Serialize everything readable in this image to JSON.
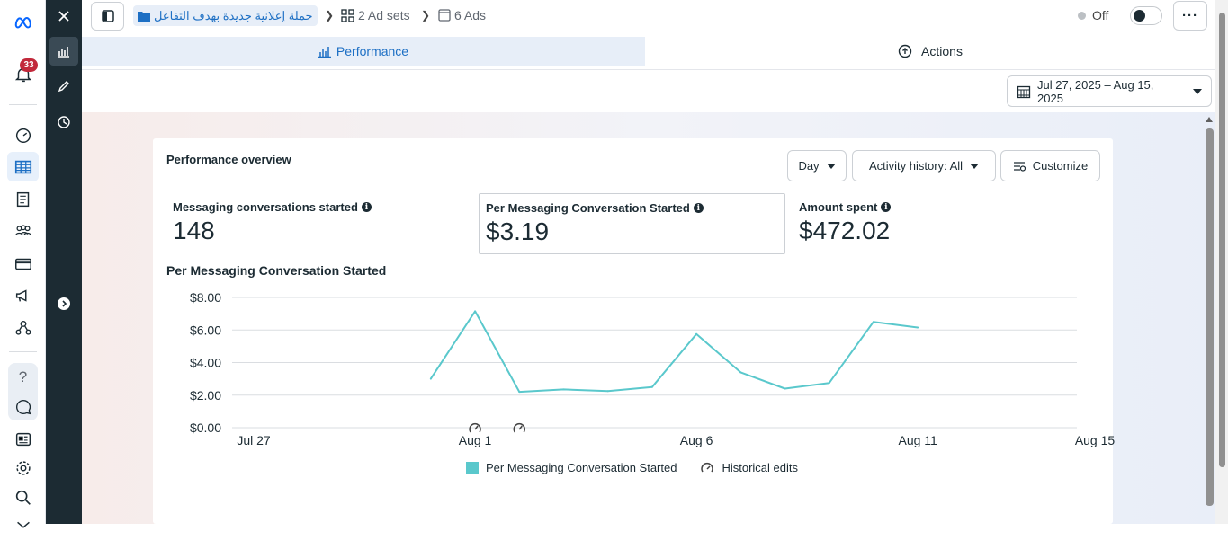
{
  "left_rail": {
    "logo": "meta-logo",
    "notification_count": "33",
    "items": [
      "notifications-icon",
      "dashboard-icon",
      "table-icon",
      "book-icon",
      "audience-icon",
      "billing-icon",
      "megaphone-icon",
      "network-icon",
      "help-icon",
      "chat-icon",
      "news-icon",
      "settings-icon",
      "search-icon",
      "tools-icon"
    ]
  },
  "dark_panel": {
    "items": [
      "close-icon",
      "performance-chart-icon",
      "edit-icon",
      "history-icon",
      "expand-icon"
    ]
  },
  "breadcrumb": {
    "campaign": "حملة إعلانية جديدة بهدف التفاعل",
    "ad_sets": "2 Ad sets",
    "ads": "6 Ads"
  },
  "status": {
    "label": "Off",
    "toggle_on": false
  },
  "tabs": {
    "performance": "Performance",
    "actions": "Actions"
  },
  "date_range": "Jul 27, 2025 – Aug 15, 2025",
  "card": {
    "title": "Performance overview",
    "controls": {
      "granularity": "Day",
      "activity": "Activity history: All",
      "customize": "Customize"
    },
    "metrics": [
      {
        "label": "Messaging conversations started",
        "value": "148"
      },
      {
        "label": "Per Messaging Conversation Started",
        "value": "$3.19"
      },
      {
        "label": "Amount spent",
        "value": "$472.02"
      }
    ]
  },
  "chart_data": {
    "type": "line",
    "title": "Per Messaging Conversation Started",
    "x": [
      "Jul 31",
      "Aug 1",
      "Aug 2",
      "Aug 3",
      "Aug 4",
      "Aug 5",
      "Aug 6",
      "Aug 7",
      "Aug 8",
      "Aug 9",
      "Aug 10",
      "Aug 11"
    ],
    "series": [
      {
        "name": "Per Messaging Conversation Started",
        "color": "#5ac8cc",
        "values": [
          3.0,
          7.15,
          2.2,
          2.35,
          2.25,
          2.5,
          5.75,
          3.4,
          2.4,
          2.75,
          6.5,
          6.15
        ]
      }
    ],
    "ylim": [
      0,
      8
    ],
    "yticks": [
      "$0.00",
      "$2.00",
      "$4.00",
      "$6.00",
      "$8.00"
    ],
    "xticks": [
      "Jul 27",
      "Aug 1",
      "Aug 6",
      "Aug 11",
      "Aug 15"
    ],
    "historical_edit_markers": [
      "Aug 1",
      "Aug 2"
    ],
    "legend": [
      "Per Messaging Conversation Started",
      "Historical edits"
    ]
  }
}
